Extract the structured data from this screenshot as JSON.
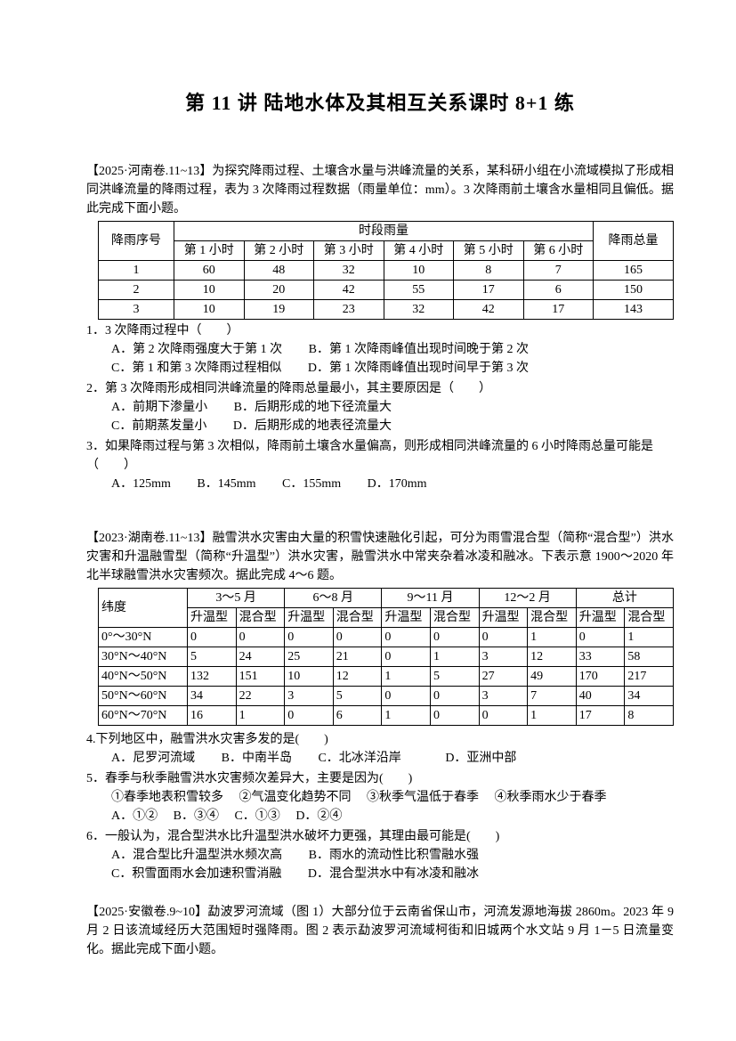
{
  "title": "第 11 讲 陆地水体及其相互关系课时 8+1 练",
  "henan": {
    "intro": "【2025·河南卷.11~13】为探究降雨过程、土壤含水量与洪峰流量的关系，某科研小组在小流域模拟了形成相同洪峰流量的降雨过程，表为 3 次降雨过程数据（雨量单位：mm）。3 次降雨前土壤含水量相同且偏低。据此完成下面小题。",
    "table": {
      "corner_header": "降雨序号",
      "group_header": "时段雨量",
      "total_header": "降雨总量",
      "hour_headers": [
        "第 1 小时",
        "第 2 小时",
        "第 3 小时",
        "第 4 小时",
        "第 5 小时",
        "第 6 小时"
      ],
      "rows": [
        [
          "1",
          "60",
          "48",
          "32",
          "10",
          "8",
          "7",
          "165"
        ],
        [
          "2",
          "10",
          "20",
          "42",
          "55",
          "17",
          "6",
          "150"
        ],
        [
          "3",
          "10",
          "19",
          "23",
          "32",
          "42",
          "17",
          "143"
        ]
      ]
    },
    "q1": {
      "stem": "1．3 次降雨过程中（　　）",
      "opts": [
        "A．第 2 次降雨强度大于第 1 次",
        "B．第 1 次降雨峰值出现时间晚于第 2 次",
        "C．第 1 和第 3 次降雨过程相似",
        "D．第 1 次降雨峰值出现时间早于第 3 次"
      ]
    },
    "q2": {
      "stem": "2．第 3 次降雨形成相同洪峰流量的降雨总量最小，其主要原因是（　　）",
      "opts": [
        "A．前期下渗量小",
        "B．后期形成的地下径流量大",
        "C．前期蒸发量小",
        "D．后期形成的地表径流量大"
      ]
    },
    "q3": {
      "stem": "3．如果降雨过程与第 3 次相似，降雨前土壤含水量偏高，则形成相同洪峰流量的 6 小时降雨总量可能是（　　）",
      "opts": [
        "A．125mm",
        "B．145mm",
        "C．155mm",
        "D．170mm"
      ]
    }
  },
  "hunan": {
    "intro": "【2023·湖南卷.11~13】融雪洪水灾害由大量的积雪快速融化引起，可分为雨雪混合型（简称“混合型”）洪水灾害和升温融雪型（简称“升温型”）洪水灾害，融雪洪水中常夹杂着冰凌和融冰。下表示意 1900～2020 年北半球融雪洪水灾害频次。据此完成 4～6 题。",
    "table": {
      "corner_header": "纬度",
      "month_headers": [
        "3～5 月",
        "6～8 月",
        "9～11 月",
        "12～2 月",
        "总计"
      ],
      "sub_headers": [
        "升温型",
        "混合型",
        "升温型",
        "混合型",
        "升温型",
        "混合型",
        "升温型",
        "混合型",
        "升温型",
        "混合型"
      ],
      "rows": [
        [
          "0°～30°N",
          "0",
          "0",
          "0",
          "0",
          "0",
          "0",
          "0",
          "1",
          "0",
          "1"
        ],
        [
          "30°N～40°N",
          "5",
          "24",
          "25",
          "21",
          "0",
          "1",
          "3",
          "12",
          "33",
          "58"
        ],
        [
          "40°N～50°N",
          "132",
          "151",
          "10",
          "12",
          "1",
          "5",
          "27",
          "49",
          "170",
          "217"
        ],
        [
          "50°N～60°N",
          "34",
          "22",
          "3",
          "5",
          "0",
          "0",
          "3",
          "7",
          "40",
          "34"
        ],
        [
          "60°N～70°N",
          "16",
          "1",
          "0",
          "6",
          "1",
          "0",
          "0",
          "1",
          "17",
          "8"
        ]
      ]
    },
    "q4": {
      "stem": "4.下列地区中，融雪洪水灾害多发的是(　　)",
      "opts": [
        "A．尼罗河流域",
        "B．中南半岛",
        "C．北冰洋沿岸",
        "D．亚洲中部"
      ]
    },
    "q5": {
      "stem": "5．春季与秋季融雪洪水灾害频次差异大，主要是因为(　　)",
      "statements": [
        "①春季地表积雪较多",
        "②气温变化趋势不同",
        "③秋季气温低于春季",
        "④秋季雨水少于春季"
      ],
      "opts": [
        "A．①②",
        "B．③④",
        "C．①③",
        "D．②④"
      ]
    },
    "q6": {
      "stem": "6．一般认为，混合型洪水比升温型洪水破坏力更强，其理由最可能是(　　)",
      "opts": [
        "A．混合型比升温型洪水频次高",
        "B．雨水的流动性比积雪融水强",
        "C．积雪面雨水会加速积雪消融",
        "D．混合型洪水中有冰凌和融冰"
      ]
    }
  },
  "anhui": {
    "intro": "【2025·安徽卷.9~10】勐波罗河流域（图 1）大部分位于云南省保山市，河流发源地海拔 2860m。2023 年 9 月 2 日该流域经历大范围短时强降雨。图 2 表示勐波罗河流域柯街和旧城两个水文站 9 月 1－5 日流量变化。据此完成下面小题。"
  }
}
